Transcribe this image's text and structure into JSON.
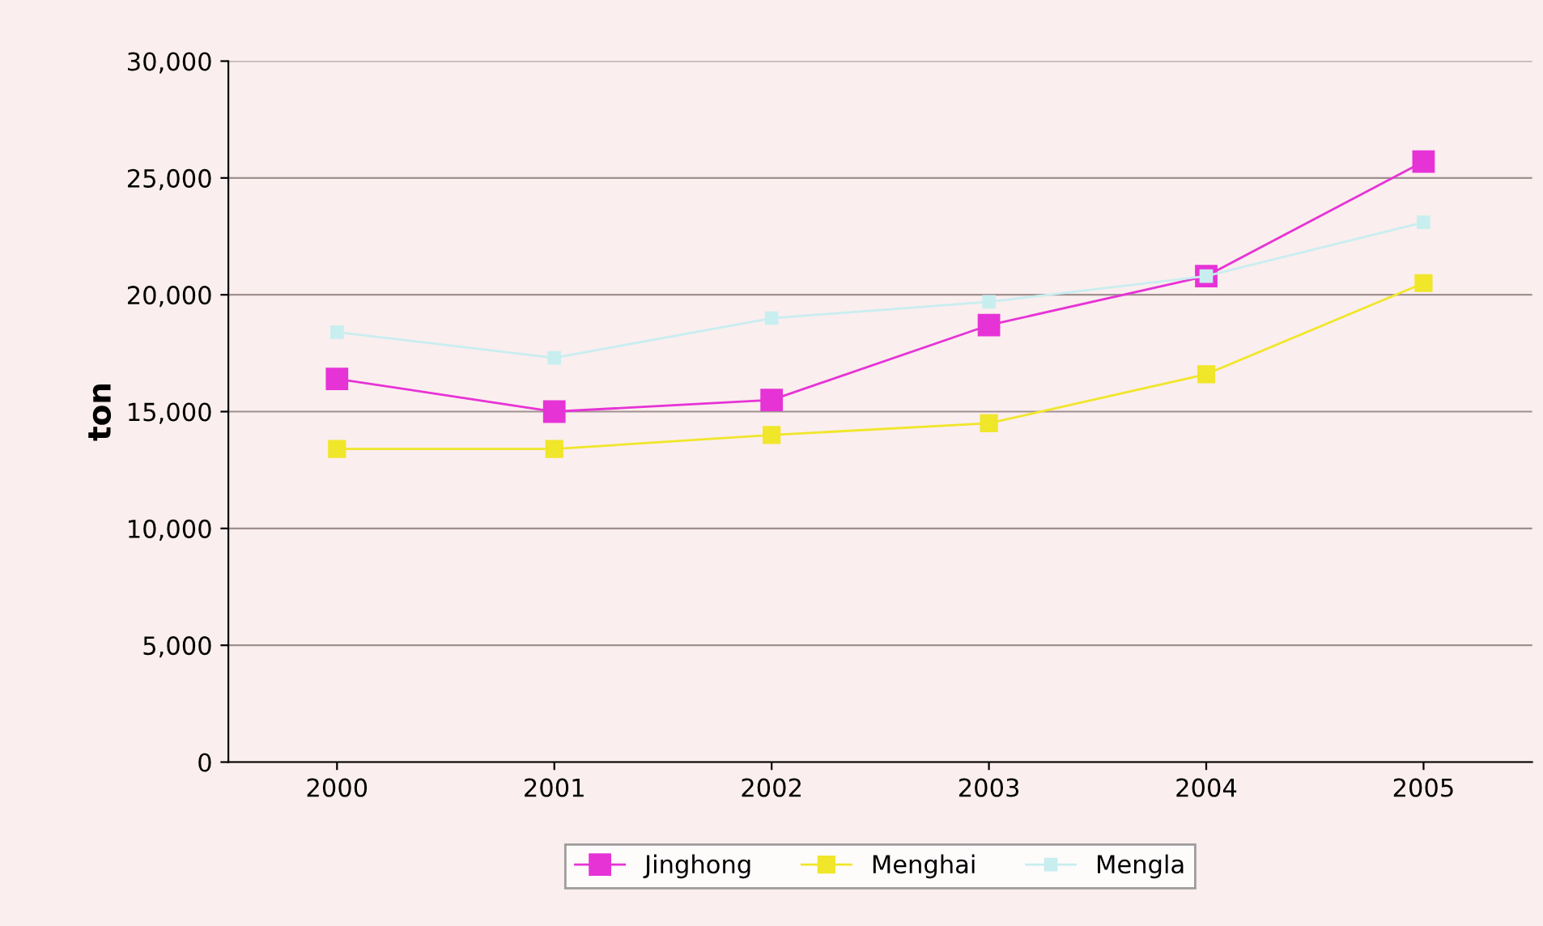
{
  "chart_data": {
    "type": "line",
    "ylabel": "ton",
    "categories": [
      "2000",
      "2001",
      "2002",
      "2003",
      "2004",
      "2005"
    ],
    "series": [
      {
        "name": "Jinghong",
        "color": "#e633d6",
        "values": [
          16400,
          15000,
          15500,
          18700,
          20800,
          25700
        ]
      },
      {
        "name": "Menghai",
        "color": "#f0e62a",
        "values": [
          13400,
          13400,
          14000,
          14500,
          16600,
          20500
        ]
      },
      {
        "name": "Mengla",
        "color": "#c8eef0",
        "values": [
          18400,
          17300,
          19000,
          19700,
          20800,
          23100
        ]
      }
    ],
    "ylim": [
      0,
      30000
    ],
    "yticks": [
      {
        "value": 0,
        "label": "0"
      },
      {
        "value": 5000,
        "label": "5,000"
      },
      {
        "value": 10000,
        "label": "10,000"
      },
      {
        "value": 15000,
        "label": "15,000"
      },
      {
        "value": 20000,
        "label": "20,000"
      },
      {
        "value": 25000,
        "label": "25,000"
      },
      {
        "value": 30000,
        "label": "30,000"
      }
    ],
    "grid": "y",
    "legend": "bottom",
    "marker": "square",
    "line_style": "solid"
  }
}
